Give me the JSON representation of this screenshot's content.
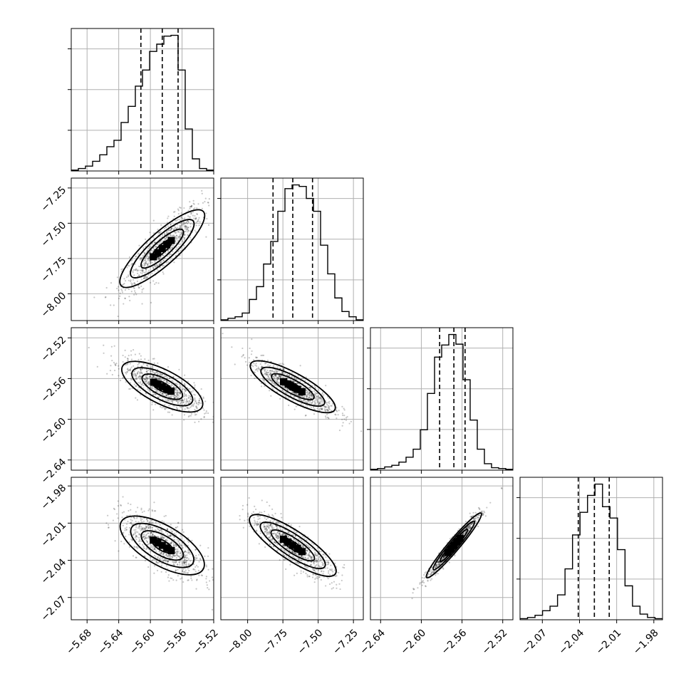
{
  "chart_data": {
    "type": "corner",
    "parameters": [
      {
        "range": [
          -5.7,
          -5.52
        ],
        "ticks": [
          -5.68,
          -5.64,
          -5.6,
          -5.56,
          -5.52
        ],
        "tick_labels": [
          "−5.68",
          "−5.64",
          "−5.60",
          "−5.56",
          "−5.52"
        ],
        "median": -5.585,
        "q16": -5.612,
        "q84": -5.565,
        "hist": [
          1,
          3,
          6,
          12,
          20,
          30,
          38,
          60,
          80,
          105,
          125,
          148,
          157,
          167,
          168,
          125,
          52,
          15,
          3,
          1
        ]
      },
      {
        "range": [
          -8.19,
          -7.18
        ],
        "ticks": [
          -8.0,
          -7.75,
          -7.5,
          -7.25
        ],
        "tick_labels": [
          "−8.00",
          "−7.75",
          "−7.50",
          "−7.25"
        ],
        "median": -7.68,
        "q16": -7.82,
        "q84": -7.54,
        "hist": [
          1,
          3,
          5,
          10,
          28,
          45,
          75,
          105,
          145,
          175,
          180,
          178,
          162,
          145,
          100,
          62,
          30,
          12,
          5,
          1
        ]
      },
      {
        "range": [
          -2.65,
          -2.51
        ],
        "ticks": [
          -2.64,
          -2.6,
          -2.56,
          -2.52
        ],
        "tick_labels": [
          "−2.64",
          "−2.60",
          "−2.56",
          "−2.52"
        ],
        "median": -2.568,
        "q16": -2.582,
        "q84": -2.557,
        "hist": [
          1,
          2,
          4,
          6,
          10,
          16,
          26,
          50,
          95,
          140,
          155,
          168,
          156,
          112,
          62,
          26,
          8,
          3,
          2,
          1
        ]
      },
      {
        "range": [
          -2.088,
          -1.973
        ],
        "ticks": [
          -2.07,
          -2.04,
          -2.01,
          -1.98
        ],
        "tick_labels": [
          "−2.07",
          "−2.04",
          "−2.01",
          "−1.98"
        ],
        "median": -2.028,
        "q16": -2.041,
        "q84": -2.016,
        "hist": [
          1,
          2,
          4,
          8,
          12,
          22,
          45,
          75,
          95,
          110,
          120,
          100,
          90,
          62,
          30,
          12,
          5,
          2,
          1
        ]
      }
    ],
    "grid": true
  }
}
